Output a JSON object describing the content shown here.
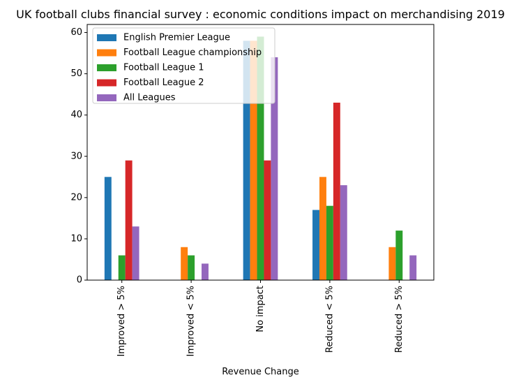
{
  "chart_data": {
    "type": "bar",
    "title": "UK football clubs financial survey : economic conditions impact on merchandising 2019",
    "xlabel": "Revenue Change",
    "ylabel": "",
    "ylim": [
      0,
      61.95
    ],
    "yticks": [
      0,
      10,
      20,
      30,
      40,
      50,
      60
    ],
    "categories": [
      "Improved > 5%",
      "Improved < 5%",
      "No impact",
      "Reduced < 5%",
      "Reduced > 5%"
    ],
    "series": [
      {
        "name": "English Premier League",
        "color": "#1f77b4",
        "values": [
          25,
          0,
          58,
          17,
          0
        ]
      },
      {
        "name": "Football League championship",
        "color": "#ff7f0e",
        "values": [
          0,
          8,
          58,
          25,
          8
        ]
      },
      {
        "name": "Football League 1",
        "color": "#2ca02c",
        "values": [
          6,
          6,
          59,
          18,
          12
        ]
      },
      {
        "name": "Football League 2",
        "color": "#d62728",
        "values": [
          29,
          0,
          29,
          43,
          0
        ]
      },
      {
        "name": "All Leagues",
        "color": "#9467bd",
        "values": [
          13,
          4,
          54,
          23,
          6
        ]
      }
    ],
    "legend_position": "upper-left",
    "grid": false
  }
}
